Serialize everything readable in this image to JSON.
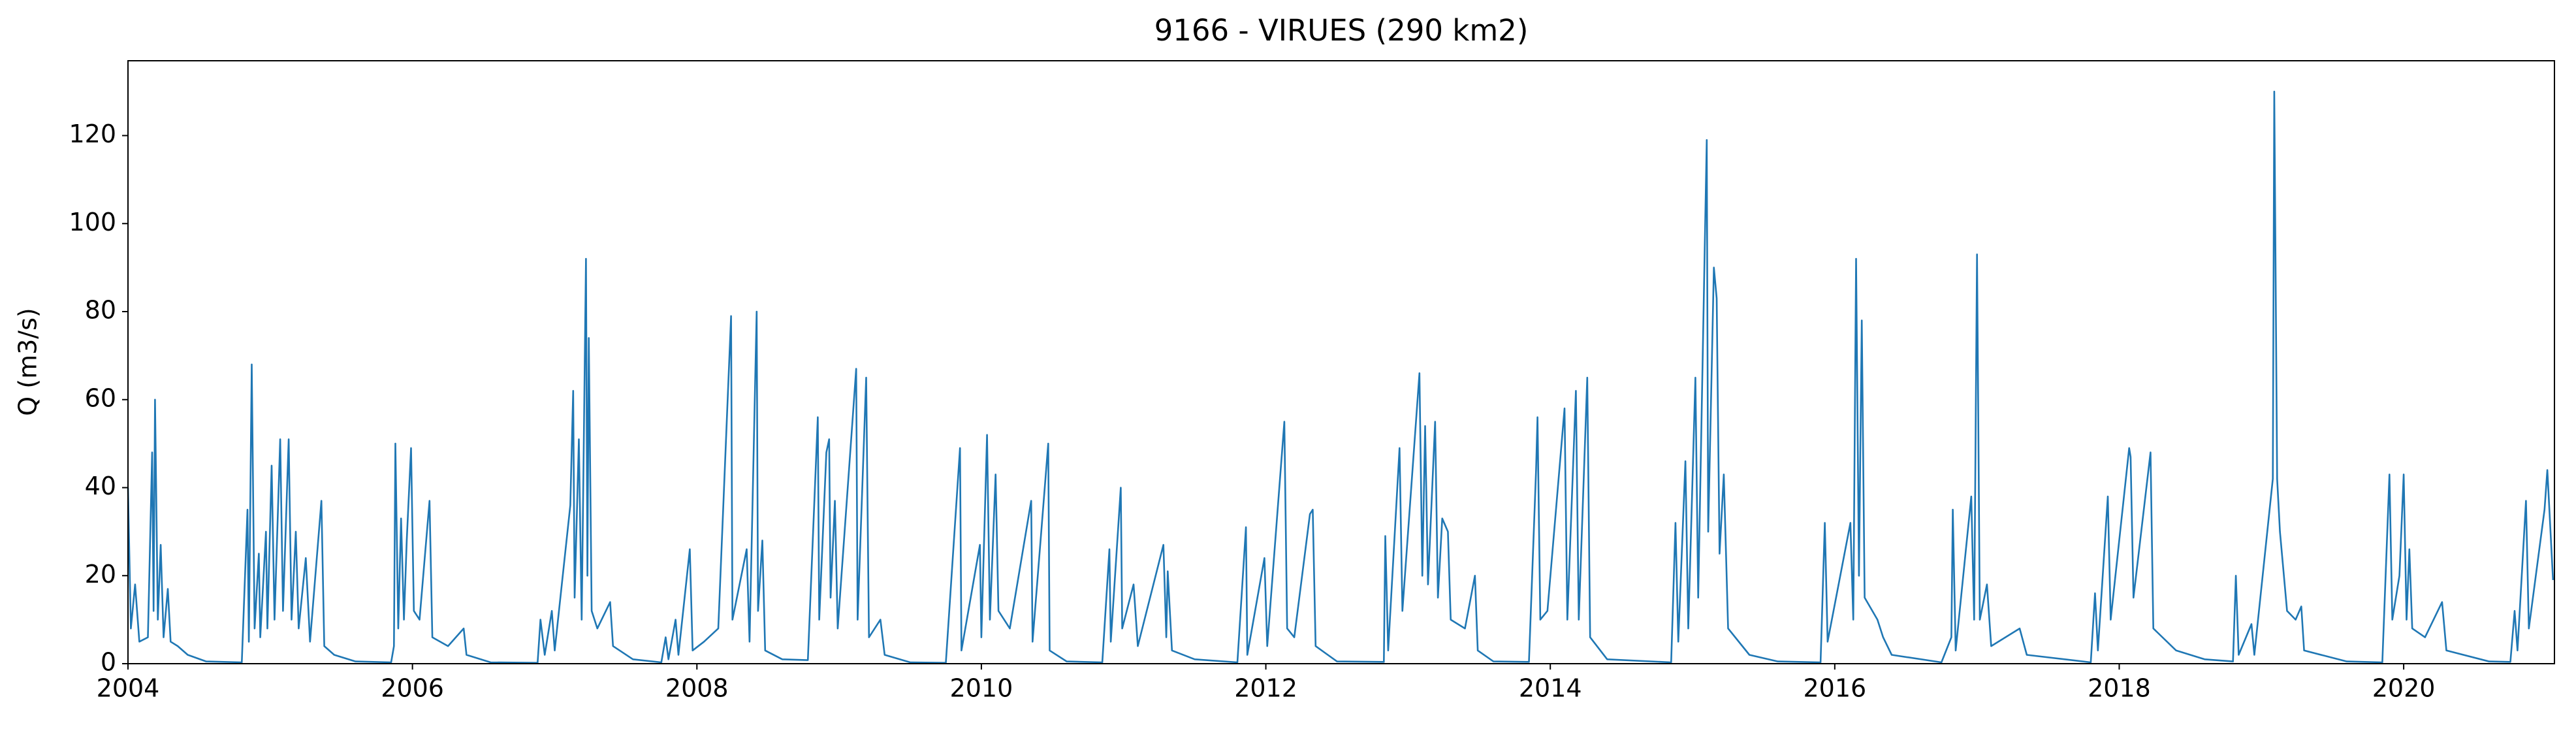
{
  "chart_data": {
    "type": "line",
    "title": "9166 - VIRUES (290 km2)",
    "ylabel": "Q (m3/s)",
    "color": "#1f77b4",
    "xlim": [
      2004,
      2021.06
    ],
    "xticks": [
      2004,
      2006,
      2008,
      2010,
      2012,
      2014,
      2016,
      2018,
      2020
    ],
    "ylim": [
      0,
      137
    ],
    "yticks": [
      0,
      20,
      40,
      60,
      80,
      100,
      120
    ],
    "grid": false,
    "x": [
      2004.0,
      2004.02,
      2004.05,
      2004.08,
      2004.14,
      2004.17,
      2004.18,
      2004.19,
      2004.21,
      2004.23,
      2004.25,
      2004.28,
      2004.3,
      2004.35,
      2004.42,
      2004.55,
      2004.8,
      2004.84,
      2004.85,
      2004.87,
      2004.89,
      2004.92,
      2004.93,
      2004.97,
      2004.98,
      2005.01,
      2005.03,
      2005.07,
      2005.09,
      2005.13,
      2005.15,
      2005.18,
      2005.2,
      2005.25,
      2005.28,
      2005.36,
      2005.38,
      2005.45,
      2005.6,
      2005.85,
      2005.87,
      2005.88,
      2005.9,
      2005.92,
      2005.94,
      2005.96,
      2005.99,
      2006.01,
      2006.05,
      2006.12,
      2006.14,
      2006.25,
      2006.36,
      2006.38,
      2006.55,
      2006.88,
      2006.9,
      2006.93,
      2006.98,
      2007.0,
      2007.11,
      2007.13,
      2007.14,
      2007.17,
      2007.19,
      2007.22,
      2007.23,
      2007.24,
      2007.26,
      2007.3,
      2007.39,
      2007.41,
      2007.55,
      2007.75,
      2007.78,
      2007.8,
      2007.85,
      2007.87,
      2007.95,
      2007.97,
      2008.05,
      2008.15,
      2008.24,
      2008.25,
      2008.35,
      2008.37,
      2008.42,
      2008.43,
      2008.46,
      2008.48,
      2008.6,
      2008.78,
      2008.85,
      2008.86,
      2008.91,
      2008.93,
      2008.94,
      2008.97,
      2008.99,
      2009.12,
      2009.13,
      2009.19,
      2009.21,
      2009.29,
      2009.32,
      2009.5,
      2009.75,
      2009.85,
      2009.86,
      2009.99,
      2010.0,
      2010.04,
      2010.06,
      2010.1,
      2010.12,
      2010.2,
      2010.35,
      2010.36,
      2010.47,
      2010.48,
      2010.6,
      2010.85,
      2010.9,
      2010.91,
      2010.98,
      2010.99,
      2011.07,
      2011.1,
      2011.28,
      2011.3,
      2011.31,
      2011.34,
      2011.5,
      2011.8,
      2011.86,
      2011.87,
      2011.99,
      2012.01,
      2012.13,
      2012.15,
      2012.2,
      2012.31,
      2012.33,
      2012.35,
      2012.5,
      2012.83,
      2012.84,
      2012.86,
      2012.94,
      2012.96,
      2013.08,
      2013.1,
      2013.12,
      2013.14,
      2013.19,
      2013.21,
      2013.24,
      2013.28,
      2013.3,
      2013.4,
      2013.47,
      2013.49,
      2013.6,
      2013.85,
      2013.9,
      2013.91,
      2013.93,
      2013.98,
      2014.1,
      2014.12,
      2014.18,
      2014.2,
      2014.26,
      2014.28,
      2014.4,
      2014.85,
      2014.88,
      2014.9,
      2014.95,
      2014.97,
      2015.02,
      2015.04,
      2015.1,
      2015.11,
      2015.15,
      2015.17,
      2015.19,
      2015.22,
      2015.25,
      2015.4,
      2015.6,
      2015.9,
      2015.93,
      2015.95,
      2016.11,
      2016.13,
      2016.15,
      2016.17,
      2016.19,
      2016.21,
      2016.3,
      2016.34,
      2016.4,
      2016.75,
      2016.82,
      2016.83,
      2016.85,
      2016.96,
      2016.98,
      2017.0,
      2017.02,
      2017.07,
      2017.1,
      2017.3,
      2017.35,
      2017.8,
      2017.83,
      2017.85,
      2017.92,
      2017.94,
      2018.07,
      2018.08,
      2018.1,
      2018.22,
      2018.24,
      2018.4,
      2018.6,
      2018.8,
      2018.82,
      2018.84,
      2018.93,
      2018.95,
      2019.08,
      2019.09,
      2019.11,
      2019.13,
      2019.18,
      2019.24,
      2019.28,
      2019.3,
      2019.6,
      2019.85,
      2019.9,
      2019.92,
      2019.97,
      2020.0,
      2020.02,
      2020.04,
      2020.06,
      2020.15,
      2020.27,
      2020.3,
      2020.6,
      2020.75,
      2020.78,
      2020.8,
      2020.86,
      2020.88,
      2020.99,
      2021.01,
      2021.05
    ],
    "values": [
      40,
      8,
      18,
      5,
      6,
      48,
      12,
      60,
      10,
      27,
      6,
      17,
      5,
      4,
      2,
      0.5,
      0.3,
      35,
      5,
      68,
      8,
      25,
      6,
      30,
      8,
      45,
      10,
      51,
      12,
      51,
      10,
      30,
      8,
      24,
      5,
      37,
      4,
      2,
      0.5,
      0.3,
      4,
      50,
      8,
      33,
      10,
      28,
      49,
      12,
      10,
      37,
      6,
      4,
      8,
      2,
      0.3,
      0.2,
      10,
      2,
      12,
      3,
      36,
      62,
      15,
      51,
      10,
      92,
      20,
      74,
      12,
      8,
      14,
      4,
      1,
      0.3,
      6,
      1,
      10,
      2,
      26,
      3,
      5,
      8,
      79,
      10,
      26,
      5,
      80,
      12,
      28,
      3,
      1,
      0.8,
      56,
      10,
      48,
      51,
      15,
      37,
      8,
      67,
      10,
      65,
      6,
      10,
      2,
      0.3,
      0.2,
      49,
      3,
      27,
      6,
      52,
      10,
      43,
      12,
      8,
      37,
      5,
      50,
      3,
      0.5,
      0.3,
      26,
      5,
      40,
      8,
      18,
      4,
      27,
      6,
      21,
      3,
      1,
      0.3,
      31,
      2,
      24,
      4,
      55,
      8,
      6,
      34,
      35,
      4,
      0.5,
      0.4,
      29,
      3,
      49,
      12,
      66,
      20,
      54,
      18,
      55,
      15,
      33,
      30,
      10,
      8,
      20,
      3,
      0.5,
      0.4,
      44,
      56,
      10,
      12,
      58,
      10,
      62,
      10,
      65,
      6,
      1,
      0.3,
      32,
      5,
      46,
      8,
      65,
      15,
      119,
      30,
      90,
      83,
      25,
      43,
      8,
      2,
      0.5,
      0.3,
      32,
      5,
      32,
      10,
      92,
      20,
      78,
      15,
      10,
      6,
      2,
      0.3,
      6,
      35,
      3,
      38,
      10,
      93,
      10,
      18,
      4,
      8,
      2,
      0.3,
      16,
      3,
      38,
      10,
      49,
      47,
      15,
      48,
      8,
      3,
      1,
      0.5,
      20,
      2,
      9,
      2,
      42,
      130,
      42,
      30,
      12,
      10,
      13,
      3,
      0.5,
      0.3,
      43,
      10,
      20,
      43,
      10,
      26,
      8,
      6,
      14,
      3,
      0.5,
      0.4,
      12,
      3,
      37,
      8,
      35,
      44,
      19
    ]
  }
}
